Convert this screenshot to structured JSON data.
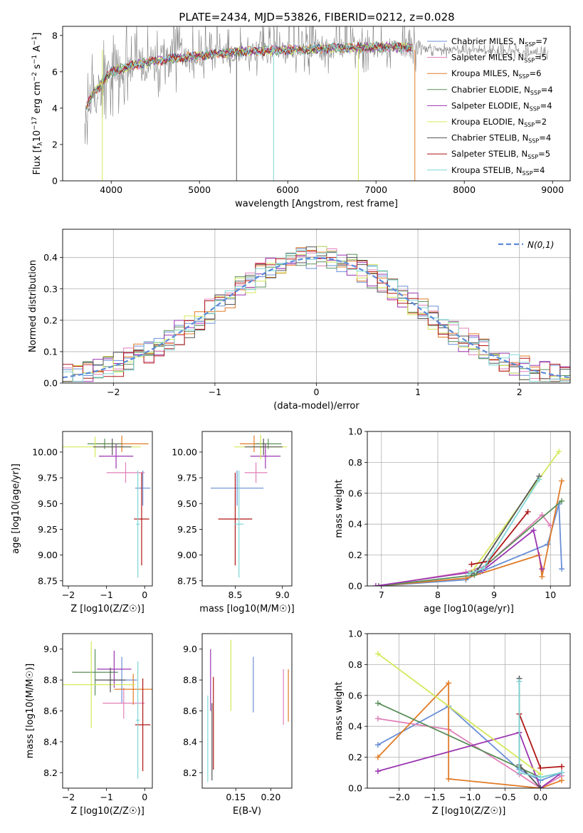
{
  "figure_title": "PLATE=2434, MJD=53826, FIBERID=0212, z=0.028",
  "colors": {
    "Chabrier MILES": "#6a8fd6",
    "Salpeter MILES": "#e07fb8",
    "Kroupa MILES": "#e07b27",
    "Chabrier ELODIE": "#5a8f5a",
    "Salpeter ELODIE": "#9b35b0",
    "Kroupa ELODIE": "#d4e85a",
    "Chabrier STELIB": "#555555",
    "Salpeter STELIB": "#b01616",
    "Kroupa STELIB": "#7fd6d6",
    "data_spectrum": "#808080",
    "normal_curve": "#5b8bd9"
  },
  "chart_data": [
    {
      "id": "spectrum",
      "type": "line",
      "title": "PLATE=2434, MJD=53826, FIBERID=0212, z=0.028",
      "xlabel": "wavelength [Angstrom, rest frame]",
      "ylabel": "Flux [f_λ 10^-17 erg cm^-2 s^-1 A^-1]",
      "xlim": [
        3450,
        9200
      ],
      "ylim": [
        0,
        8.5
      ],
      "xticks": [
        4000,
        5000,
        6000,
        7000,
        8000,
        9000
      ],
      "yticks": [
        0,
        2,
        4,
        6,
        8
      ],
      "legend": "right",
      "legend_entries": [
        {
          "prefix": "Chabrier MILES, N",
          "n": "7"
        },
        {
          "prefix": "Salpeter MILES, N",
          "n": "5"
        },
        {
          "prefix": "Kroupa MILES, N",
          "n": "6"
        },
        {
          "prefix": "Chabrier ELODIE, N",
          "n": "4"
        },
        {
          "prefix": "Salpeter ELODIE, N",
          "n": "4"
        },
        {
          "prefix": "Kroupa ELODIE, N",
          "n": "2"
        },
        {
          "prefix": "Chabrier STELIB, N",
          "n": "4"
        },
        {
          "prefix": "Salpeter STELIB, N",
          "n": "5"
        },
        {
          "prefix": "Kroupa STELIB, N",
          "n": "4"
        }
      ],
      "legend_subscript": "SSP",
      "model_continuum": {
        "x": [
          3700,
          3800,
          3900,
          4000,
          4200,
          4500,
          5000,
          5500,
          6000,
          6500,
          7000,
          7400,
          7600,
          8000,
          8500,
          9000
        ],
        "y": [
          3.9,
          4.8,
          5.4,
          6.0,
          6.3,
          6.6,
          6.9,
          7.1,
          7.2,
          7.3,
          7.35,
          7.35,
          7.3,
          7.2,
          7.1,
          7.0
        ]
      }
    },
    {
      "id": "residuals",
      "type": "histogram",
      "xlabel": "(data-model)/error",
      "ylabel": "Normed distribution",
      "xlim": [
        -2.5,
        2.5
      ],
      "ylim": [
        0,
        0.49
      ],
      "xticks": [
        -2,
        -1,
        0,
        1,
        2
      ],
      "yticks": [
        0.0,
        0.1,
        0.2,
        0.3,
        0.4
      ],
      "grid": true,
      "legend": "top-right",
      "curve_label": "N(0,1)",
      "bin_width": 0.1,
      "approx_shape": "standard normal with scatter ±0.04"
    },
    {
      "id": "age_vs_Z",
      "type": "scatter",
      "xlabel": "Z [log10(Z/Z☉)]",
      "ylabel": "age  [log10(age/yr)]",
      "xlim": [
        -2.15,
        0.2
      ],
      "ylim": [
        8.7,
        10.2
      ],
      "xticks": [
        -2,
        -1,
        0
      ],
      "yticks": [
        8.75,
        9.0,
        9.25,
        9.5,
        9.75,
        10.0
      ],
      "points": [
        {
          "model": "Chabrier MILES",
          "x": -0.05,
          "y": 9.65,
          "xerr": 0.2,
          "yerr": 0.17
        },
        {
          "model": "Salpeter MILES",
          "x": -0.5,
          "y": 9.8,
          "xerr": 0.5,
          "yerr": 0.1
        },
        {
          "model": "Kroupa MILES",
          "x": -0.6,
          "y": 10.08,
          "xerr": 0.7,
          "yerr": 0.08
        },
        {
          "model": "Chabrier ELODIE",
          "x": -1.05,
          "y": 10.08,
          "xerr": 0.45,
          "yerr": 0.05
        },
        {
          "model": "Salpeter ELODIE",
          "x": -0.75,
          "y": 9.96,
          "xerr": 0.45,
          "yerr": 0.12
        },
        {
          "model": "Kroupa ELODIE",
          "x": -1.3,
          "y": 10.05,
          "xerr": 1.2,
          "yerr": 0.1
        },
        {
          "model": "Chabrier STELIB",
          "x": -0.85,
          "y": 10.05,
          "xerr": 0.5,
          "yerr": 0.08
        },
        {
          "model": "Salpeter STELIB",
          "x": -0.08,
          "y": 9.35,
          "xerr": 0.2,
          "yerr": 0.45
        },
        {
          "model": "Kroupa STELIB",
          "x": -0.18,
          "y": 9.3,
          "xerr": 0.05,
          "yerr": 0.52
        }
      ]
    },
    {
      "id": "age_vs_mass",
      "type": "scatter",
      "xlabel": "mass [log10(M/M☉)]",
      "ylabel": "",
      "xlim": [
        8.15,
        9.1
      ],
      "ylim": [
        8.7,
        10.2
      ],
      "xticks": [
        8.5,
        9.0
      ],
      "yticks": [
        8.75,
        9.0,
        9.25,
        9.5,
        9.75,
        10.0
      ],
      "points": [
        {
          "model": "Chabrier MILES",
          "x": 8.52,
          "y": 9.65,
          "xerr": 0.28,
          "yerr": 0.17
        },
        {
          "model": "Salpeter MILES",
          "x": 8.72,
          "y": 9.8,
          "xerr": 0.12,
          "yerr": 0.1
        },
        {
          "model": "Kroupa MILES",
          "x": 8.7,
          "y": 10.08,
          "xerr": 0.15,
          "yerr": 0.08
        },
        {
          "model": "Chabrier ELODIE",
          "x": 8.85,
          "y": 10.08,
          "xerr": 0.14,
          "yerr": 0.05
        },
        {
          "model": "Salpeter ELODIE",
          "x": 8.82,
          "y": 9.96,
          "xerr": 0.16,
          "yerr": 0.12
        },
        {
          "model": "Kroupa ELODIE",
          "x": 8.77,
          "y": 10.05,
          "xerr": 0.28,
          "yerr": 0.12
        },
        {
          "model": "Chabrier STELIB",
          "x": 8.8,
          "y": 10.05,
          "xerr": 0.2,
          "yerr": 0.08
        },
        {
          "model": "Salpeter STELIB",
          "x": 8.5,
          "y": 9.35,
          "xerr": 0.18,
          "yerr": 0.45
        },
        {
          "model": "Kroupa STELIB",
          "x": 8.54,
          "y": 9.3,
          "xerr": 0.05,
          "yerr": 0.52
        }
      ]
    },
    {
      "id": "massweight_vs_age",
      "type": "line",
      "xlabel": "age  [log10(age/yr)]",
      "ylabel": "mass weight",
      "xlim": [
        6.75,
        10.35
      ],
      "ylim": [
        0,
        1.0
      ],
      "xticks": [
        7,
        8,
        9,
        10
      ],
      "yticks": [
        0.0,
        0.2,
        0.4,
        0.6,
        0.8,
        1.0
      ],
      "grid": true,
      "series": [
        {
          "model": "Chabrier MILES",
          "x": [
            6.95,
            8.5,
            8.75,
            9.95,
            10.15,
            10.2
          ],
          "y": [
            0.0,
            0.04,
            0.09,
            0.27,
            0.53,
            0.11
          ]
        },
        {
          "model": "Salpeter MILES",
          "x": [
            6.95,
            8.5,
            8.85,
            9.85,
            10.0
          ],
          "y": [
            0.0,
            0.09,
            0.13,
            0.46,
            0.39
          ]
        },
        {
          "model": "Kroupa MILES",
          "x": [
            6.95,
            8.5,
            9.8,
            9.85,
            10.2
          ],
          "y": [
            0.0,
            0.05,
            0.2,
            0.06,
            0.68
          ]
        },
        {
          "model": "Chabrier ELODIE",
          "x": [
            6.95,
            8.65,
            10.2
          ],
          "y": [
            0.0,
            0.07,
            0.55
          ]
        },
        {
          "model": "Salpeter ELODIE",
          "x": [
            6.9,
            8.8,
            9.7,
            9.85
          ],
          "y": [
            0.0,
            0.1,
            0.36,
            0.11
          ]
        },
        {
          "model": "Kroupa ELODIE",
          "x": [
            8.6,
            10.15
          ],
          "y": [
            0.09,
            0.87
          ]
        },
        {
          "model": "Chabrier STELIB",
          "x": [
            8.6,
            8.7,
            9.8
          ],
          "y": [
            0.08,
            0.1,
            0.71
          ]
        },
        {
          "model": "Salpeter STELIB",
          "x": [
            8.6,
            8.9,
            9.6
          ],
          "y": [
            0.14,
            0.16,
            0.48
          ]
        },
        {
          "model": "Kroupa STELIB",
          "x": [
            8.55,
            8.8,
            9.8
          ],
          "y": [
            0.08,
            0.11,
            0.69
          ]
        }
      ]
    },
    {
      "id": "mass_vs_Z",
      "type": "scatter",
      "xlabel": "Z [log10(Z/Z☉)]",
      "ylabel": "mass [log10(M/M☉)]",
      "xlim": [
        -2.15,
        0.2
      ],
      "ylim": [
        8.1,
        9.1
      ],
      "xticks": [
        -2,
        -1,
        0
      ],
      "yticks": [
        8.2,
        8.4,
        8.6,
        8.8,
        9.0
      ],
      "points": [
        {
          "model": "Chabrier MILES",
          "x": -0.6,
          "y": 8.8,
          "xerr": 0.4,
          "yerr": 0.15
        },
        {
          "model": "Salpeter MILES",
          "x": -0.55,
          "y": 8.65,
          "xerr": 0.55,
          "yerr": 0.1
        },
        {
          "model": "Kroupa MILES",
          "x": -0.3,
          "y": 8.74,
          "xerr": 0.5,
          "yerr": 0.1
        },
        {
          "model": "Chabrier ELODIE",
          "x": -1.3,
          "y": 8.85,
          "xerr": 0.6,
          "yerr": 0.15
        },
        {
          "model": "Salpeter ELODIE",
          "x": -0.8,
          "y": 8.87,
          "xerr": 0.45,
          "yerr": 0.12
        },
        {
          "model": "Kroupa ELODIE",
          "x": -1.4,
          "y": 8.77,
          "xerr": 1.15,
          "yerr": 0.28
        },
        {
          "model": "Chabrier STELIB",
          "x": -0.9,
          "y": 8.8,
          "xerr": 0.4,
          "yerr": 0.08
        },
        {
          "model": "Salpeter STELIB",
          "x": -0.05,
          "y": 8.51,
          "xerr": 0.2,
          "yerr": 0.3
        },
        {
          "model": "Kroupa STELIB",
          "x": -0.18,
          "y": 8.54,
          "xerr": 0.05,
          "yerr": 0.38
        }
      ]
    },
    {
      "id": "mass_vs_EBV",
      "type": "scatter",
      "xlabel": "E(B-V)",
      "ylabel": "",
      "xlim": [
        0.102,
        0.23
      ],
      "ylim": [
        8.1,
        9.1
      ],
      "xticks": [
        0.15,
        0.2
      ],
      "yticks": [
        8.2,
        8.4,
        8.6,
        8.8,
        9.0
      ],
      "points": [
        {
          "model": "Chabrier MILES",
          "x": 0.175,
          "y": 8.77,
          "yerr": 0.18
        },
        {
          "model": "Kroupa MILES",
          "x": 0.225,
          "y": 8.7,
          "yerr": 0.17
        },
        {
          "model": "Salpeter MILES",
          "x": 0.218,
          "y": 8.69,
          "yerr": 0.18
        },
        {
          "model": "Kroupa ELODIE",
          "x": 0.143,
          "y": 8.83,
          "yerr": 0.23
        },
        {
          "model": "Salpeter ELODIE",
          "x": 0.114,
          "y": 8.8,
          "yerr": 0.2
        },
        {
          "model": "Salpeter STELIB",
          "x": 0.118,
          "y": 8.52,
          "yerr": 0.3
        },
        {
          "model": "Chabrier STELIB",
          "x": 0.116,
          "y": 8.4,
          "yerr": 0.25
        },
        {
          "model": "Kroupa STELIB",
          "x": 0.11,
          "y": 8.42,
          "yerr": 0.28
        }
      ]
    },
    {
      "id": "massweight_vs_Z",
      "type": "line",
      "xlabel": "Z [log10(Z/Z☉)]",
      "ylabel": "mass weight",
      "xlim": [
        -2.45,
        0.42
      ],
      "ylim": [
        0,
        1.0
      ],
      "xticks": [
        -2.0,
        -1.5,
        -1.0,
        -0.5,
        0.0
      ],
      "yticks": [
        0.0,
        0.2,
        0.4,
        0.6,
        0.8,
        1.0
      ],
      "grid": true,
      "series": [
        {
          "model": "Chabrier MILES",
          "x": [
            -2.3,
            -1.3,
            -0.3,
            0.0,
            0.3
          ],
          "y": [
            0.28,
            0.53,
            0.12,
            0.05,
            0.1
          ]
        },
        {
          "model": "Salpeter MILES",
          "x": [
            -2.3,
            -1.3,
            -0.3,
            0.0,
            0.3
          ],
          "y": [
            0.45,
            0.38,
            0.09,
            0.0,
            0.08
          ]
        },
        {
          "model": "Kroupa MILES",
          "x": [
            -2.3,
            -1.3,
            -1.3,
            0.0,
            0.3
          ],
          "y": [
            0.2,
            0.68,
            0.06,
            0.0,
            0.05
          ]
        },
        {
          "model": "Chabrier ELODIE",
          "x": [
            -2.3,
            0.0,
            0.3
          ],
          "y": [
            0.55,
            0.07,
            0.1
          ]
        },
        {
          "model": "Salpeter ELODIE",
          "x": [
            -2.3,
            -0.3,
            0.0,
            0.3
          ],
          "y": [
            0.11,
            0.36,
            0.0,
            0.1
          ]
        },
        {
          "model": "Kroupa ELODIE",
          "x": [
            -2.3,
            0.0
          ],
          "y": [
            0.87,
            0.09
          ]
        },
        {
          "model": "Chabrier STELIB",
          "x": [
            -0.3,
            -0.3,
            0.0
          ],
          "y": [
            0.71,
            0.15,
            0.0
          ]
        },
        {
          "model": "Salpeter STELIB",
          "x": [
            -0.3,
            0.0,
            0.3
          ],
          "y": [
            0.48,
            0.13,
            0.14
          ]
        },
        {
          "model": "Kroupa STELIB",
          "x": [
            -0.3,
            -0.3,
            0.0,
            0.3
          ],
          "y": [
            0.69,
            0.1,
            0.07,
            0.1
          ]
        }
      ]
    }
  ]
}
